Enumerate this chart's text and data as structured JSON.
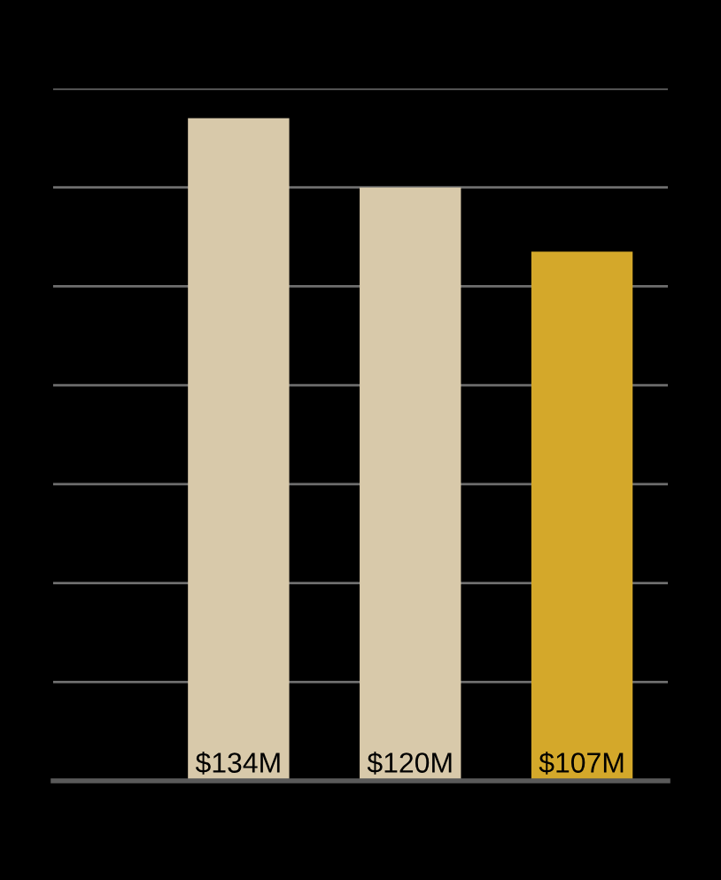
{
  "chart_data": {
    "type": "bar",
    "categories": [
      null,
      null,
      null
    ],
    "values": [
      134,
      120,
      107
    ],
    "colors": [
      "#d8c9aa",
      "#d8c9aa",
      "#d4a82a"
    ],
    "value_labels": [
      "$134M",
      "$120M",
      "$107M"
    ],
    "ylim": [
      0,
      140
    ],
    "yticks": [
      {
        "value": 0,
        "label": null
      },
      {
        "value": 20,
        "label": null
      },
      {
        "value": 40,
        "label": null
      },
      {
        "value": 60,
        "label": null
      },
      {
        "value": 80,
        "label": null
      },
      {
        "value": 100,
        "label": null
      },
      {
        "value": 120,
        "label": null
      },
      {
        "value": 140,
        "label": null
      }
    ],
    "grid": "y"
  }
}
